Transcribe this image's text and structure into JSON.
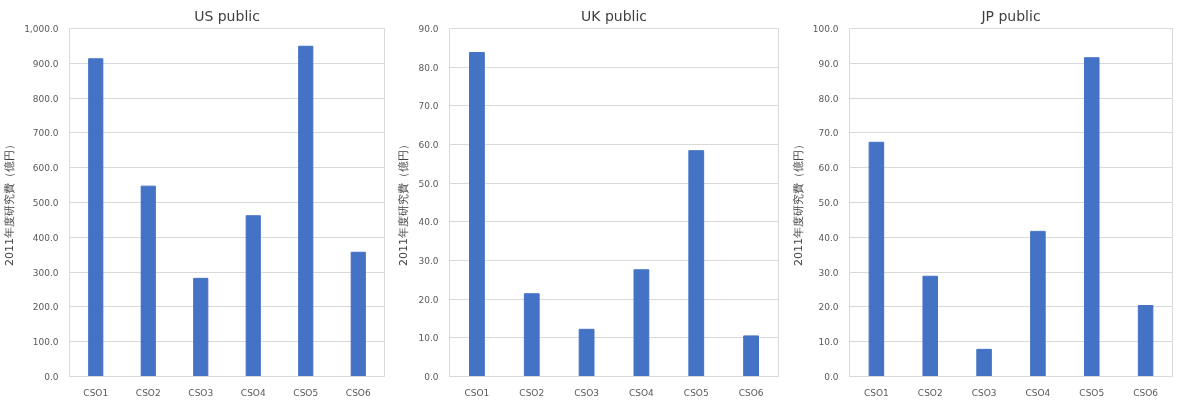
{
  "chart_data": [
    {
      "type": "bar",
      "title": "US public",
      "ylabel": "2011年度研究費（億円）",
      "categories": [
        "CSO1",
        "CSO2",
        "CSO3",
        "CSO4",
        "CSO5",
        "CSO6"
      ],
      "values": [
        913,
        547,
        282,
        462,
        949,
        357
      ],
      "color": "#4472c4",
      "ylim": [
        0,
        1000
      ],
      "yticks": [
        {
          "value": 0,
          "label": "0.0"
        },
        {
          "value": 100,
          "label": "100.0"
        },
        {
          "value": 200,
          "label": "200.0"
        },
        {
          "value": 300,
          "label": "300.0"
        },
        {
          "value": 400,
          "label": "400.0"
        },
        {
          "value": 500,
          "label": "500.0"
        },
        {
          "value": 600,
          "label": "600.0"
        },
        {
          "value": 700,
          "label": "700.0"
        },
        {
          "value": 800,
          "label": "800.0"
        },
        {
          "value": 900,
          "label": "900.0"
        },
        {
          "value": 1000,
          "label": "1,000.0"
        }
      ],
      "grid": "y"
    },
    {
      "type": "bar",
      "title": "UK public",
      "ylabel": "2011年度研究費（億円）",
      "categories": [
        "CSO1",
        "CSO2",
        "CSO3",
        "CSO4",
        "CSO5",
        "CSO6"
      ],
      "values": [
        83.8,
        21.4,
        12.2,
        27.6,
        58.4,
        10.5
      ],
      "color": "#4472c4",
      "ylim": [
        0,
        90
      ],
      "yticks": [
        {
          "value": 0,
          "label": "0.0"
        },
        {
          "value": 10,
          "label": "10.0"
        },
        {
          "value": 20,
          "label": "20.0"
        },
        {
          "value": 30,
          "label": "30.0"
        },
        {
          "value": 40,
          "label": "40.0"
        },
        {
          "value": 50,
          "label": "50.0"
        },
        {
          "value": 60,
          "label": "60.0"
        },
        {
          "value": 70,
          "label": "70.0"
        },
        {
          "value": 80,
          "label": "80.0"
        },
        {
          "value": 90,
          "label": "90.0"
        }
      ],
      "grid": "y"
    },
    {
      "type": "bar",
      "title": "JP public",
      "ylabel": "2011年度研究費（億円）",
      "categories": [
        "CSO1",
        "CSO2",
        "CSO3",
        "CSO4",
        "CSO5",
        "CSO6"
      ],
      "values": [
        67.3,
        28.8,
        7.8,
        41.7,
        91.6,
        20.4
      ],
      "color": "#4472c4",
      "ylim": [
        0,
        100
      ],
      "yticks": [
        {
          "value": 0,
          "label": "0.0"
        },
        {
          "value": 10,
          "label": "10.0"
        },
        {
          "value": 20,
          "label": "20.0"
        },
        {
          "value": 30,
          "label": "30.0"
        },
        {
          "value": 40,
          "label": "40.0"
        },
        {
          "value": 50,
          "label": "50.0"
        },
        {
          "value": 60,
          "label": "60.0"
        },
        {
          "value": 70,
          "label": "70.0"
        },
        {
          "value": 80,
          "label": "80.0"
        },
        {
          "value": 90,
          "label": "90.0"
        },
        {
          "value": 100,
          "label": "100.0"
        }
      ],
      "grid": "y"
    }
  ]
}
